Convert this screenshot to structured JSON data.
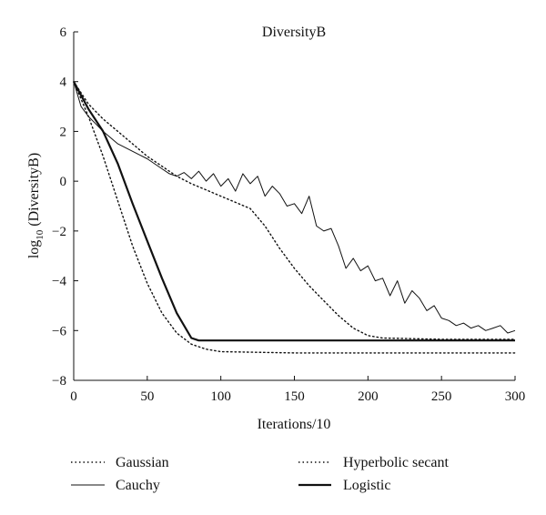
{
  "chart_data": {
    "type": "line",
    "title": "DiversityB",
    "xlabel": "Iterations/10",
    "ylabel_main": "log",
    "ylabel_sub": "10",
    "ylabel_rest": " (DiversityB)",
    "xlim": [
      0,
      300
    ],
    "ylim": [
      -8,
      6
    ],
    "xticks": [
      0,
      50,
      100,
      150,
      200,
      250,
      300
    ],
    "yticks": [
      6,
      4,
      2,
      0,
      -2,
      -4,
      -6,
      -8
    ],
    "grid": false,
    "legend_position": "bottom",
    "series": [
      {
        "name": "Gaussian",
        "style": "dotted",
        "points": [
          [
            0,
            4.0
          ],
          [
            10,
            2.6
          ],
          [
            20,
            1.0
          ],
          [
            30,
            -0.8
          ],
          [
            40,
            -2.6
          ],
          [
            50,
            -4.1
          ],
          [
            60,
            -5.3
          ],
          [
            70,
            -6.1
          ],
          [
            80,
            -6.55
          ],
          [
            90,
            -6.75
          ],
          [
            100,
            -6.85
          ],
          [
            150,
            -6.9
          ],
          [
            200,
            -6.9
          ],
          [
            250,
            -6.9
          ],
          [
            300,
            -6.9
          ]
        ]
      },
      {
        "name": "Hyperbolic secant",
        "style": "dotted",
        "points": [
          [
            0,
            4.0
          ],
          [
            10,
            3.1
          ],
          [
            20,
            2.5
          ],
          [
            30,
            2.0
          ],
          [
            40,
            1.5
          ],
          [
            50,
            1.0
          ],
          [
            60,
            0.6
          ],
          [
            70,
            0.2
          ],
          [
            80,
            -0.1
          ],
          [
            90,
            -0.35
          ],
          [
            100,
            -0.6
          ],
          [
            110,
            -0.85
          ],
          [
            120,
            -1.1
          ],
          [
            130,
            -1.8
          ],
          [
            140,
            -2.7
          ],
          [
            150,
            -3.5
          ],
          [
            160,
            -4.2
          ],
          [
            170,
            -4.8
          ],
          [
            180,
            -5.4
          ],
          [
            190,
            -5.9
          ],
          [
            200,
            -6.2
          ],
          [
            210,
            -6.3
          ],
          [
            250,
            -6.35
          ],
          [
            300,
            -6.35
          ]
        ]
      },
      {
        "name": "Cauchy",
        "style": "solid",
        "width": 1.0,
        "points": [
          [
            0,
            4.0
          ],
          [
            5,
            3.0
          ],
          [
            10,
            2.6
          ],
          [
            15,
            2.3
          ],
          [
            20,
            2.0
          ],
          [
            25,
            1.75
          ],
          [
            30,
            1.5
          ],
          [
            35,
            1.35
          ],
          [
            40,
            1.2
          ],
          [
            45,
            1.05
          ],
          [
            50,
            0.9
          ],
          [
            55,
            0.7
          ],
          [
            60,
            0.5
          ],
          [
            65,
            0.3
          ],
          [
            70,
            0.2
          ],
          [
            75,
            0.35
          ],
          [
            80,
            0.1
          ],
          [
            85,
            0.4
          ],
          [
            90,
            0.0
          ],
          [
            95,
            0.3
          ],
          [
            100,
            -0.2
          ],
          [
            105,
            0.1
          ],
          [
            110,
            -0.4
          ],
          [
            115,
            0.3
          ],
          [
            120,
            -0.1
          ],
          [
            125,
            0.2
          ],
          [
            130,
            -0.6
          ],
          [
            135,
            -0.2
          ],
          [
            140,
            -0.5
          ],
          [
            145,
            -1.0
          ],
          [
            150,
            -0.9
          ],
          [
            155,
            -1.3
          ],
          [
            160,
            -0.6
          ],
          [
            165,
            -1.8
          ],
          [
            170,
            -2.0
          ],
          [
            175,
            -1.9
          ],
          [
            180,
            -2.6
          ],
          [
            185,
            -3.5
          ],
          [
            190,
            -3.1
          ],
          [
            195,
            -3.6
          ],
          [
            200,
            -3.4
          ],
          [
            205,
            -4.0
          ],
          [
            210,
            -3.9
          ],
          [
            215,
            -4.6
          ],
          [
            220,
            -4.0
          ],
          [
            225,
            -4.9
          ],
          [
            230,
            -4.4
          ],
          [
            235,
            -4.7
          ],
          [
            240,
            -5.2
          ],
          [
            245,
            -5.0
          ],
          [
            250,
            -5.5
          ],
          [
            255,
            -5.6
          ],
          [
            260,
            -5.8
          ],
          [
            265,
            -5.7
          ],
          [
            270,
            -5.9
          ],
          [
            275,
            -5.8
          ],
          [
            280,
            -6.0
          ],
          [
            285,
            -5.9
          ],
          [
            290,
            -5.8
          ],
          [
            295,
            -6.1
          ],
          [
            300,
            -6.0
          ]
        ]
      },
      {
        "name": "Logistic",
        "style": "solid",
        "width": 2.2,
        "points": [
          [
            0,
            4.0
          ],
          [
            10,
            2.9
          ],
          [
            20,
            2.0
          ],
          [
            30,
            0.7
          ],
          [
            40,
            -0.9
          ],
          [
            50,
            -2.4
          ],
          [
            60,
            -3.9
          ],
          [
            70,
            -5.3
          ],
          [
            80,
            -6.3
          ],
          [
            85,
            -6.4
          ],
          [
            100,
            -6.4
          ],
          [
            150,
            -6.4
          ],
          [
            200,
            -6.4
          ],
          [
            250,
            -6.4
          ],
          [
            300,
            -6.4
          ]
        ]
      }
    ]
  }
}
